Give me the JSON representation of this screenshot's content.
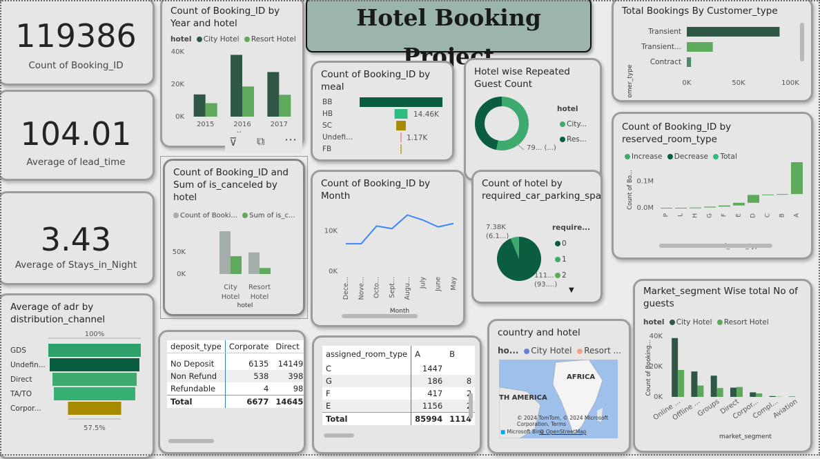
{
  "title": "Hotel Booking Project",
  "colors": {
    "dark": "#2e5746",
    "mid": "#3faa6e",
    "light": "#5fa95d",
    "teal": "#2ebd80",
    "forest": "#0a5d3f",
    "gold": "#a88a00",
    "blue": "#3a86ff",
    "grey": "#a3ada9"
  },
  "kpis": [
    {
      "value": "119386",
      "label": "Count of Booking_ID"
    },
    {
      "value": "104.01",
      "label": "Average of lead_time"
    },
    {
      "value": "3.43",
      "label": "Average of Stays_in_Night"
    }
  ],
  "year_hotel": {
    "title": "Count of Booking_ID by Year and hotel",
    "legend_title": "hotel",
    "series_names": [
      "City Hotel",
      "Resort Hotel"
    ],
    "yticks": [
      "40K",
      "20K",
      "0K"
    ],
    "xlabel": "Year"
  },
  "canceled": {
    "title": "Count of Booking_ID and Sum of is_canceled by hotel",
    "legend": [
      "Count of Booki...",
      "Sum of is_c..."
    ],
    "yticks": [
      "50K",
      "0K"
    ],
    "xlabel": "hotel"
  },
  "adr": {
    "title": "Average of adr by distribution_channel",
    "top": "100%",
    "bottom": "57.5%"
  },
  "meal": {
    "title": "Count of Booking_ID by meal",
    "labels": [
      "14.46K",
      "1.17K"
    ]
  },
  "repeated": {
    "title": "Hotel wise Repeated Guest Count",
    "legend_title": "hotel",
    "legend": [
      "City...",
      "Res..."
    ],
    "label": "79... (...)"
  },
  "month": {
    "title": "Count of Booking_ID by Month",
    "yticks": [
      "10K",
      "0K"
    ],
    "xlabel": "Month"
  },
  "parking": {
    "title": "Count of hotel by required_car_parking_spaces",
    "legend_title": "require...",
    "legend": [
      "0",
      "1",
      "2"
    ],
    "label_small": "7.38K",
    "label_small2": "(6.1...)",
    "label_big": "111...",
    "label_big2": "(93....)"
  },
  "customer": {
    "title": "Total Bookings By Customer_type",
    "ylabel": "customer_type",
    "xticks": [
      "0K",
      "50K",
      "100K"
    ]
  },
  "room": {
    "title": "Count of Booking_ID by reserved_room_type",
    "legend": [
      "Increase",
      "Decrease",
      "Total"
    ],
    "yticks": [
      "0.1M",
      "0.0M"
    ],
    "ylabel": "Count of Bo...",
    "xlabel": "reserved_room_type"
  },
  "market": {
    "title": "Market_segment Wise total No of guests",
    "legend_title": "hotel",
    "series_names": [
      "City Hotel",
      "Resort Hotel"
    ],
    "yticks": [
      "40K",
      "20K",
      "0K"
    ],
    "ylabel": "Count of Booking...",
    "xlabel": "market_segment"
  },
  "deposit": {
    "headers": [
      "deposit_type",
      "Corporate",
      "Direct"
    ],
    "rows": [
      [
        "No Deposit",
        "6135",
        "14149"
      ],
      [
        "Non Refund",
        "538",
        "398"
      ],
      [
        "Refundable",
        "4",
        "98"
      ]
    ],
    "total": [
      "Total",
      "6677",
      "14645"
    ]
  },
  "assigned": {
    "headers": [
      "assigned_room_type",
      "A",
      "B"
    ],
    "rows": [
      [
        "C",
        "1447",
        ""
      ],
      [
        "G",
        "186",
        "8"
      ],
      [
        "F",
        "417",
        "2"
      ],
      [
        "E",
        "1156",
        "2"
      ]
    ],
    "total": [
      "Total",
      "85994",
      "1114"
    ]
  },
  "map": {
    "title": "country and hotel",
    "legend_title": "ho...",
    "legend": [
      "City Hotel",
      "Resort ..."
    ],
    "labels": [
      "AFRICA",
      "TH AMERICA"
    ],
    "credit": "© 2024 TomTom, © 2024 Microsoft Corporation,",
    "terms": "Terms",
    "osm": "© OpenStreetMap",
    "ms": "Microsoft Bing"
  },
  "chart_data": [
    {
      "type": "bar",
      "title": "Count of Booking_ID by Year and hotel",
      "categories": [
        "2015",
        "2016",
        "2017"
      ],
      "series": [
        {
          "name": "City Hotel",
          "values": [
            13700,
            38100,
            27500
          ]
        },
        {
          "name": "Resort Hotel",
          "values": [
            8300,
            18600,
            13500
          ]
        }
      ],
      "xlabel": "Year",
      "ylim": [
        0,
        40000
      ]
    },
    {
      "type": "bar",
      "title": "Count of Booking_ID and Sum of is_canceled by hotel",
      "categories": [
        "City Hotel",
        "Resort Hotel"
      ],
      "series": [
        {
          "name": "Count of Booki...",
          "values": [
            79330,
            40060
          ]
        },
        {
          "name": "Sum of is_c...",
          "values": [
            33100,
            11120
          ]
        }
      ],
      "xlabel": "hotel",
      "ylim": [
        0,
        100000
      ]
    },
    {
      "type": "bar",
      "title": "Average of adr by distribution_channel",
      "categories": [
        "GDS",
        "Undefin...",
        "Direct",
        "TA/TO",
        "Corpor..."
      ],
      "values": [
        100,
        97,
        91,
        88,
        57.5
      ]
    },
    {
      "type": "bar",
      "title": "Count of Booking_ID by meal",
      "categories": [
        "BB",
        "HB",
        "SC",
        "Undefi...",
        "FB"
      ],
      "values": [
        92310,
        14460,
        10650,
        1170,
        800
      ]
    },
    {
      "type": "pie",
      "title": "Hotel wise Repeated Guest Count",
      "categories": [
        "City...",
        "Res..."
      ],
      "values": [
        2032,
        1778
      ]
    },
    {
      "type": "line",
      "title": "Count of Booking_ID by Month",
      "categories": [
        "Dece...",
        "Nove...",
        "Octo...",
        "Sept...",
        "Augu...",
        "July",
        "June",
        "May"
      ],
      "values": [
        6780,
        6790,
        11160,
        10510,
        13880,
        12660,
        10940,
        11790
      ],
      "xlabel": "Month",
      "ylim": [
        0,
        16000
      ]
    },
    {
      "type": "pie",
      "title": "Count of hotel by required_car_parking_spaces",
      "categories": [
        "0",
        "1",
        "2"
      ],
      "values": [
        111974,
        7383,
        28
      ]
    },
    {
      "type": "bar",
      "title": "Total Bookings By Customer_type",
      "categories": [
        "Transient",
        "Transient...",
        "Contract"
      ],
      "values": [
        89613,
        25124,
        4076
      ],
      "ylabel": "customer_type",
      "xlim": [
        0,
        100000
      ]
    },
    {
      "type": "bar",
      "title": "Count of Booking_ID by reserved_room_type",
      "categories": [
        "P",
        "L",
        "H",
        "G",
        "F",
        "E",
        "D",
        "C",
        "B",
        "A"
      ],
      "values": [
        12,
        6,
        601,
        2094,
        2897,
        6535,
        19201,
        932,
        1118,
        85994
      ],
      "xlabel": "reserved_room_type"
    },
    {
      "type": "bar",
      "title": "Market_segment Wise total No of guests",
      "categories": [
        "Online ...",
        "Offline ...",
        "Groups",
        "Direct",
        "Corpor...",
        "Compl...",
        "Aviation"
      ],
      "series": [
        {
          "name": "City Hotel",
          "values": [
            38750,
            16750,
            13975,
            6093,
            2986,
            542,
            237
          ]
        },
        {
          "name": "Resort Hotel",
          "values": [
            17729,
            7472,
            5836,
            6513,
            2309,
            201,
            0
          ]
        }
      ],
      "xlabel": "market_segment",
      "ylim": [
        0,
        40000
      ]
    }
  ]
}
